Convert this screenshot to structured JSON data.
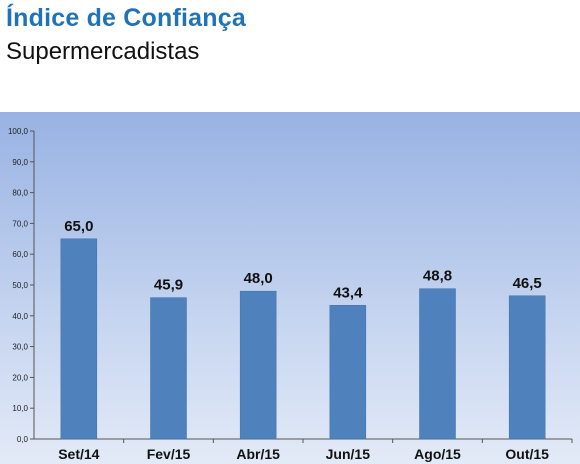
{
  "header": {
    "title": "Índice de Confiança",
    "subtitle": "Supermercadistas"
  },
  "colors": {
    "title": "#1f74b8",
    "bar": "#4f81bd",
    "panel_top": "#98b2e3",
    "panel_bottom": "#e3eaf7"
  },
  "chart_data": {
    "type": "bar",
    "title": "Índice de Confiança",
    "subtitle": "Supermercadistas",
    "categories": [
      "Set/14",
      "Fev/15",
      "Abr/15",
      "Jun/15",
      "Ago/15",
      "Out/15"
    ],
    "values": [
      65.0,
      45.9,
      48.0,
      43.4,
      48.8,
      46.5
    ],
    "value_labels": [
      "65,0",
      "45,9",
      "48,0",
      "43,4",
      "48,8",
      "46,5"
    ],
    "yticks": [
      "0,0",
      "10,0",
      "20,0",
      "30,0",
      "40,0",
      "50,0",
      "60,0",
      "70,0",
      "80,0",
      "90,0",
      "100,0"
    ],
    "ylim": [
      0,
      100
    ],
    "xlabel": "",
    "ylabel": "",
    "grid": false,
    "legend": "none"
  }
}
